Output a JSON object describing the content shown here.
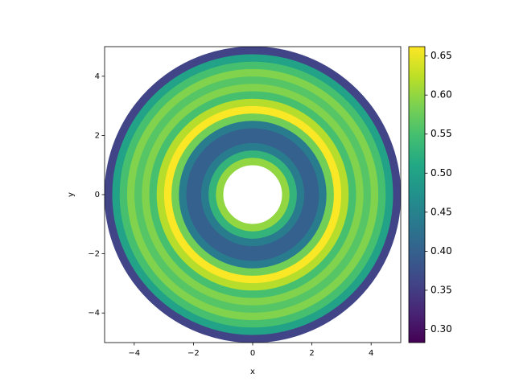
{
  "chart_data": {
    "type": "annulus",
    "x_label": "x",
    "y_label": "y",
    "xlim": [
      -5,
      5
    ],
    "ylim": [
      -5,
      5
    ],
    "xticks": [
      {
        "value": -4,
        "label": "−4"
      },
      {
        "value": -2,
        "label": "−2"
      },
      0,
      2,
      4
    ],
    "yticks": [
      {
        "value": -4,
        "label": "−4"
      },
      {
        "value": -2,
        "label": "−2"
      },
      0,
      2,
      4
    ],
    "cmap": "viridis",
    "clim": [
      0.283,
      0.662
    ],
    "colorbar_ticks": [
      {
        "value": 0.3,
        "label": "0.30"
      },
      {
        "value": 0.35,
        "label": "0.35"
      },
      {
        "value": 0.4,
        "label": "0.40"
      },
      {
        "value": 0.45,
        "label": "0.45"
      },
      {
        "value": 0.5,
        "label": "0.50"
      },
      {
        "value": 0.55,
        "label": "0.55"
      },
      {
        "value": 0.6,
        "label": "0.60"
      },
      {
        "value": 0.65,
        "label": "0.65"
      }
    ],
    "r": [
      1.125,
      1.375,
      1.625,
      1.875,
      2.125,
      2.375,
      2.625,
      2.875,
      3.125,
      3.375,
      3.625,
      3.875,
      4.125,
      4.375,
      4.625,
      4.875
    ],
    "values": [
      0.6,
      0.53,
      0.44,
      0.4,
      0.4,
      0.44,
      0.58,
      0.66,
      0.62,
      0.55,
      0.59,
      0.56,
      0.59,
      0.55,
      0.5,
      0.36
    ]
  }
}
